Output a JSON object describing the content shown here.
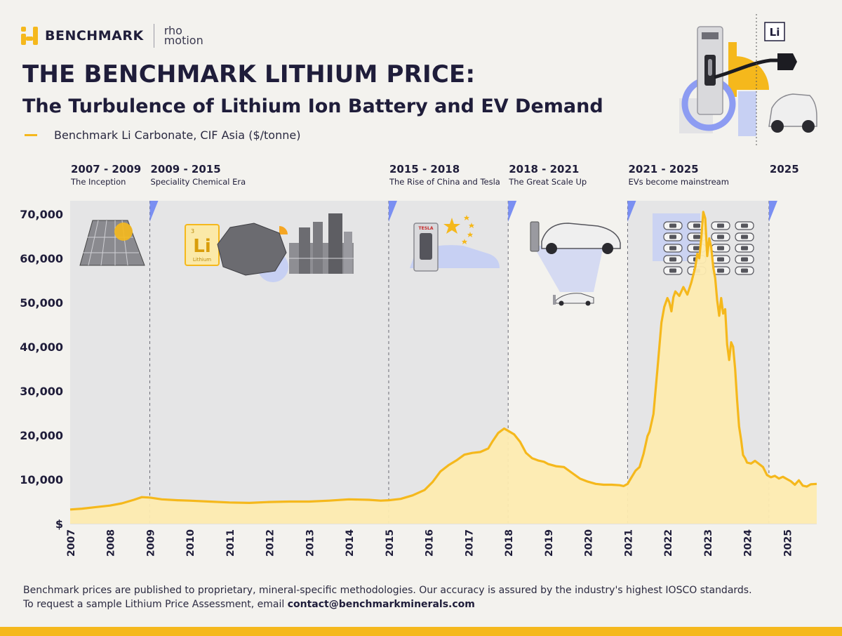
{
  "brand": {
    "name": "BENCHMARK",
    "partner_line1": "rho",
    "partner_line2": "motion"
  },
  "title": "THE BENCHMARK LITHIUM PRICE:",
  "subtitle": "The Turbulence of Lithium Ion Battery and EV Demand",
  "legend_label": "Benchmark Li Carbonate, CIF Asia ($/tonne)",
  "hero_badge": "Li",
  "element_symbol": "Li",
  "element_name": "Lithium",
  "tesla_label": "TESLA",
  "colors": {
    "accent": "#f5b81c",
    "navy": "#1f1d3a",
    "fill": "#fdebb0",
    "era_band": "#e5e5e6",
    "marker": "#7a8ff2"
  },
  "footer": {
    "line1": "Benchmark prices are published to proprietary, mineral-specific methodologies. Our accuracy is assured by the industry's highest IOSCO standards.",
    "line2_prefix": "To request a sample Lithium Price Assessment, email ",
    "email": "contact@benchmarkminerals.com"
  },
  "chart_data": {
    "type": "area",
    "title": "THE BENCHMARK LITHIUM PRICE:",
    "ylabel": "Benchmark Li Carbonate, CIF Asia ($/tonne)",
    "ylim": [
      0,
      73000
    ],
    "xlim": [
      2007.0,
      2025.75
    ],
    "y_ticks": [
      0,
      10000,
      20000,
      30000,
      40000,
      50000,
      60000,
      70000
    ],
    "y_tick_labels": [
      "$",
      "10,000",
      "20,000",
      "30,000",
      "40,000",
      "50,000",
      "60,000",
      "70,000"
    ],
    "x_ticks": [
      2007,
      2008,
      2009,
      2010,
      2011,
      2012,
      2013,
      2014,
      2015,
      2016,
      2017,
      2018,
      2019,
      2020,
      2021,
      2022,
      2023,
      2024,
      2025
    ],
    "x_tick_labels": [
      "2007",
      "2008",
      "2009",
      "2010",
      "2011",
      "2012",
      "2013",
      "2014",
      "2015",
      "2016",
      "2017",
      "2018",
      "2019",
      "2020",
      "2021",
      "2022",
      "2023",
      "2024",
      "2025"
    ],
    "eras": [
      {
        "start": 2007.0,
        "end": 2009.0,
        "shaded": true,
        "years": "2007 - 2009",
        "label": "The Inception"
      },
      {
        "start": 2009.0,
        "end": 2015.0,
        "shaded": true,
        "years": "2009 - 2015",
        "label": "Speciality Chemical Era"
      },
      {
        "start": 2015.0,
        "end": 2018.0,
        "shaded": true,
        "years": "2015 - 2018",
        "label": "The Rise of China and Tesla"
      },
      {
        "start": 2018.0,
        "end": 2021.0,
        "shaded": false,
        "years": "2018 - 2021",
        "label": "The Great Scale Up"
      },
      {
        "start": 2021.0,
        "end": 2024.55,
        "shaded": true,
        "years": "2021 - 2025",
        "label": "EVs become mainstream"
      },
      {
        "start": 2024.55,
        "end": 2025.75,
        "shaded": false,
        "years": "2025",
        "label": ""
      }
    ],
    "series": [
      {
        "name": "Benchmark Li Carbonate, CIF Asia ($/tonne)",
        "x": [
          2007.0,
          2007.3,
          2007.6,
          2008.0,
          2008.3,
          2008.6,
          2008.8,
          2009.0,
          2009.3,
          2009.7,
          2010.0,
          2010.5,
          2011.0,
          2011.5,
          2012.0,
          2012.5,
          2013.0,
          2013.5,
          2014.0,
          2014.5,
          2014.8,
          2015.0,
          2015.3,
          2015.6,
          2015.9,
          2016.1,
          2016.3,
          2016.5,
          2016.7,
          2016.9,
          2017.1,
          2017.3,
          2017.5,
          2017.6,
          2017.75,
          2017.9,
          2018.0,
          2018.15,
          2018.3,
          2018.45,
          2018.6,
          2018.75,
          2018.9,
          2019.0,
          2019.2,
          2019.4,
          2019.6,
          2019.8,
          2020.0,
          2020.2,
          2020.4,
          2020.6,
          2020.8,
          2020.9,
          2021.0,
          2021.1,
          2021.2,
          2021.3,
          2021.4,
          2021.5,
          2021.55,
          2021.65,
          2021.75,
          2021.85,
          2021.92,
          2022.0,
          2022.05,
          2022.1,
          2022.15,
          2022.2,
          2022.3,
          2022.4,
          2022.5,
          2022.6,
          2022.7,
          2022.75,
          2022.8,
          2022.85,
          2022.9,
          2022.95,
          2023.0,
          2023.05,
          2023.1,
          2023.15,
          2023.2,
          2023.25,
          2023.3,
          2023.35,
          2023.4,
          2023.45,
          2023.5,
          2023.55,
          2023.6,
          2023.65,
          2023.7,
          2023.75,
          2023.8,
          2023.85,
          2023.9,
          2023.95,
          2024.0,
          2024.1,
          2024.2,
          2024.3,
          2024.4,
          2024.5,
          2024.6,
          2024.7,
          2024.8,
          2024.9,
          2025.0,
          2025.1,
          2025.2,
          2025.3,
          2025.4,
          2025.5,
          2025.6,
          2025.75
        ],
        "y": [
          3200,
          3400,
          3700,
          4100,
          4600,
          5400,
          6000,
          5900,
          5500,
          5300,
          5200,
          5000,
          4800,
          4700,
          4900,
          5000,
          5000,
          5200,
          5500,
          5400,
          5200,
          5300,
          5600,
          6400,
          7600,
          9400,
          11800,
          13200,
          14300,
          15600,
          16000,
          16200,
          17000,
          18500,
          20500,
          21500,
          21000,
          20200,
          18500,
          16000,
          14800,
          14300,
          14000,
          13500,
          13000,
          12800,
          11500,
          10200,
          9500,
          9000,
          8800,
          8800,
          8700,
          8500,
          9000,
          10500,
          12000,
          12800,
          15800,
          19800,
          20800,
          24800,
          35000,
          45500,
          49000,
          51000,
          50000,
          48000,
          51200,
          52500,
          51500,
          53500,
          51800,
          54500,
          58000,
          61000,
          60000,
          64500,
          70500,
          69000,
          60500,
          64500,
          62500,
          58000,
          55500,
          50500,
          47000,
          51000,
          47500,
          48500,
          40500,
          37000,
          41000,
          40000,
          35000,
          28000,
          22000,
          19000,
          15500,
          14800,
          13800,
          13600,
          14200,
          13500,
          12800,
          11000,
          10500,
          10800,
          10200,
          10600,
          10100,
          9600,
          8800,
          9800,
          8600,
          8400,
          8900,
          9000
        ]
      }
    ]
  }
}
